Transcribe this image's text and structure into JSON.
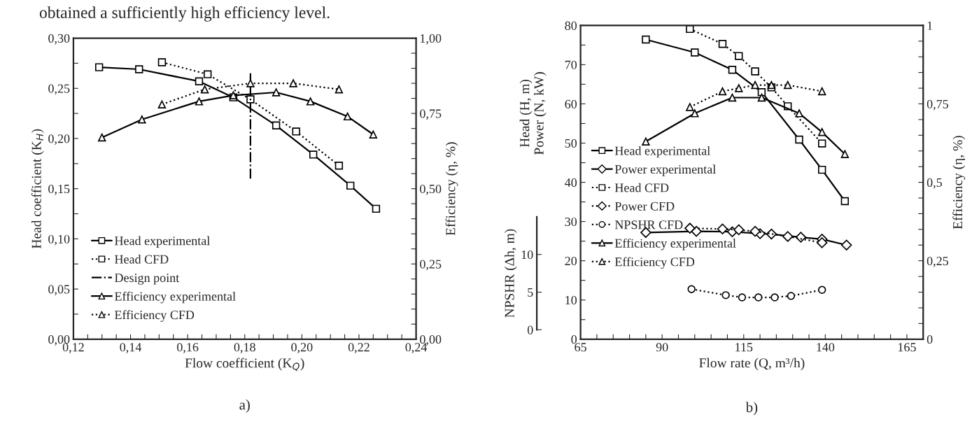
{
  "chart_data": [
    {
      "type": "line",
      "xlabel": "Flow coefficient (K$_{Q}$)",
      "ylabel": "Head coefficient (K$_{H}$)",
      "y2label": "Efficiency (η, %)",
      "annotations": [
        "obtained a sufficiently high efficiency level.",
        "a)"
      ],
      "xlim": [
        0.12,
        0.24
      ],
      "xticks": [
        {
          "value": 0.12,
          "label": "0,12"
        },
        {
          "value": 0.125,
          "label": null
        },
        {
          "value": 0.13,
          "label": null
        },
        {
          "value": 0.135,
          "label": null
        },
        {
          "value": 0.14,
          "label": "0,14"
        },
        {
          "value": 0.145,
          "label": null
        },
        {
          "value": 0.15,
          "label": null
        },
        {
          "value": 0.155,
          "label": null
        },
        {
          "value": 0.16,
          "label": "0,16"
        },
        {
          "value": 0.165,
          "label": null
        },
        {
          "value": 0.17,
          "label": null
        },
        {
          "value": 0.175,
          "label": null
        },
        {
          "value": 0.18,
          "label": "0,18"
        },
        {
          "value": 0.185,
          "label": null
        },
        {
          "value": 0.19,
          "label": null
        },
        {
          "value": 0.195,
          "label": null
        },
        {
          "value": 0.2,
          "label": "0,20"
        },
        {
          "value": 0.205,
          "label": null
        },
        {
          "value": 0.21,
          "label": null
        },
        {
          "value": 0.215,
          "label": null
        },
        {
          "value": 0.22,
          "label": "0,22"
        },
        {
          "value": 0.225,
          "label": null
        },
        {
          "value": 0.23,
          "label": null
        },
        {
          "value": 0.235,
          "label": null
        },
        {
          "value": 0.24,
          "label": "0,24"
        }
      ],
      "ylim": [
        0,
        0.3
      ],
      "yticks": [
        {
          "value": 0,
          "label": "0,00"
        },
        {
          "value": 0.025,
          "label": null
        },
        {
          "value": 0.05,
          "label": "0,05"
        },
        {
          "value": 0.075,
          "label": null
        },
        {
          "value": 0.1,
          "label": "0,10"
        },
        {
          "value": 0.125,
          "label": null
        },
        {
          "value": 0.15,
          "label": "0,15"
        },
        {
          "value": 0.175,
          "label": null
        },
        {
          "value": 0.2,
          "label": "0,20"
        },
        {
          "value": 0.225,
          "label": null
        },
        {
          "value": 0.25,
          "label": "0,25"
        },
        {
          "value": 0.275,
          "label": null
        },
        {
          "value": 0.3,
          "label": "0,30"
        }
      ],
      "y2lim": [
        0,
        1
      ],
      "y2ticks": [
        {
          "value": 0,
          "label": "0,00"
        },
        {
          "value": 0.05,
          "label": null
        },
        {
          "value": 0.1,
          "label": null
        },
        {
          "value": 0.15,
          "label": null
        },
        {
          "value": 0.2,
          "label": null
        },
        {
          "value": 0.25,
          "label": "0,25"
        },
        {
          "value": 0.3,
          "label": null
        },
        {
          "value": 0.35,
          "label": null
        },
        {
          "value": 0.4,
          "label": null
        },
        {
          "value": 0.45,
          "label": null
        },
        {
          "value": 0.5,
          "label": "0,50"
        },
        {
          "value": 0.55,
          "label": null
        },
        {
          "value": 0.6,
          "label": null
        },
        {
          "value": 0.65,
          "label": null
        },
        {
          "value": 0.7,
          "label": null
        },
        {
          "value": 0.75,
          "label": "0,75"
        },
        {
          "value": 0.8,
          "label": null
        },
        {
          "value": 0.85,
          "label": null
        },
        {
          "value": 0.9,
          "label": null
        },
        {
          "value": 0.95,
          "label": null
        },
        {
          "value": 1,
          "label": "1,00"
        }
      ],
      "grid": false,
      "legend": "bottom left",
      "series": [
        {
          "name": "Head experimental",
          "color": "#000000",
          "marker": "square",
          "line_style": "solid",
          "x": [
            0.129,
            0.143,
            0.164,
            0.176,
            0.191,
            0.204,
            0.217,
            0.226
          ],
          "values": [
            0.271,
            0.269,
            0.257,
            0.241,
            0.213,
            0.184,
            0.153,
            0.13
          ]
        },
        {
          "name": "Head CFD",
          "color": "#000000",
          "marker": "square",
          "line_style": "dotted",
          "x": [
            0.151,
            0.167,
            0.182,
            0.198,
            0.213
          ],
          "values": [
            0.276,
            0.264,
            0.239,
            0.207,
            0.173
          ]
        },
        {
          "name": "Design point",
          "color": "#000000",
          "marker": "none",
          "line_style": "dashdot",
          "x": [
            0.182,
            0.182
          ],
          "values": [
            0.16,
            0.265
          ]
        },
        {
          "name": "Efficiency experimental",
          "color": "#000000",
          "marker": "triangle",
          "line_style": "solid",
          "axis": "y2",
          "x": [
            0.13,
            0.144,
            0.164,
            0.176,
            0.191,
            0.203,
            0.216,
            0.225
          ],
          "values": [
            0.67,
            0.73,
            0.79,
            0.81,
            0.82,
            0.79,
            0.74,
            0.68
          ]
        },
        {
          "name": "Efficiency CFD",
          "color": "#000000",
          "marker": "triangle",
          "line_style": "dotted",
          "axis": "y2",
          "x": [
            0.151,
            0.166,
            0.182,
            0.197,
            0.213
          ],
          "values": [
            0.78,
            0.83,
            0.85,
            0.85,
            0.83
          ]
        }
      ]
    },
    {
      "type": "line",
      "xlabel": "Flow rate (Q, m³/h)",
      "ylabel": "Head (H, m)\nPower (N, kW)",
      "y2label": "Efficiency (η, %)",
      "y3label": "NPSHR (Δh, m)",
      "annotations": [
        "b)"
      ],
      "xlim": [
        65,
        170
      ],
      "xticks": [
        65,
        {
          "value": 70,
          "label": null
        },
        {
          "value": 75,
          "label": null
        },
        {
          "value": 80,
          "label": null
        },
        {
          "value": 85,
          "label": null
        },
        90,
        {
          "value": 95,
          "label": null
        },
        {
          "value": 100,
          "label": null
        },
        {
          "value": 105,
          "label": null
        },
        {
          "value": 110,
          "label": null
        },
        115,
        {
          "value": 120,
          "label": null
        },
        {
          "value": 125,
          "label": null
        },
        {
          "value": 130,
          "label": null
        },
        {
          "value": 135,
          "label": null
        },
        140,
        {
          "value": 145,
          "label": null
        },
        {
          "value": 150,
          "label": null
        },
        {
          "value": 155,
          "label": null
        },
        {
          "value": 160,
          "label": null
        },
        165
      ],
      "ylim": [
        0,
        80
      ],
      "yticks": [
        0,
        {
          "value": 5,
          "label": null
        },
        10,
        {
          "value": 15,
          "label": null
        },
        20,
        {
          "value": 25,
          "label": null
        },
        30,
        {
          "value": 35,
          "label": null
        },
        40,
        {
          "value": 45,
          "label": null
        },
        50,
        {
          "value": 55,
          "label": null
        },
        60,
        {
          "value": 65,
          "label": null
        },
        70,
        {
          "value": 75,
          "label": null
        },
        80
      ],
      "y2lim": [
        0,
        1
      ],
      "y2ticks": [
        0,
        {
          "value": 0.05,
          "label": null
        },
        {
          "value": 0.1,
          "label": null
        },
        {
          "value": 0.15,
          "label": null
        },
        {
          "value": 0.2,
          "label": null
        },
        {
          "value": 0.25,
          "label": "0,25"
        },
        {
          "value": 0.3,
          "label": null
        },
        {
          "value": 0.35,
          "label": null
        },
        {
          "value": 0.4,
          "label": null
        },
        {
          "value": 0.45,
          "label": null
        },
        {
          "value": 0.5,
          "label": "0,5"
        },
        {
          "value": 0.55,
          "label": null
        },
        {
          "value": 0.6,
          "label": null
        },
        {
          "value": 0.65,
          "label": null
        },
        {
          "value": 0.7,
          "label": null
        },
        {
          "value": 0.75,
          "label": "0,75"
        },
        {
          "value": 0.8,
          "label": null
        },
        {
          "value": 0.85,
          "label": null
        },
        {
          "value": 0.9,
          "label": null
        },
        {
          "value": 0.95,
          "label": null
        },
        1
      ],
      "y3lim": [
        0,
        15
      ],
      "y3ticks": [
        0,
        5,
        10
      ],
      "grid": false,
      "legend": "left",
      "series": [
        {
          "name": "Head experimental",
          "color": "#000000",
          "marker": "square",
          "line_style": "solid",
          "x": [
            85,
            100,
            111.5,
            120.5,
            132,
            139,
            146
          ],
          "values": [
            76.4,
            73.1,
            68.7,
            63.0,
            50.9,
            43.2,
            35.2
          ]
        },
        {
          "name": "Power experimental",
          "color": "#000000",
          "marker": "diamond",
          "line_style": "solid",
          "x": [
            85,
            100.5,
            111.5,
            120,
            123.5,
            132.5,
            139,
            146.5
          ],
          "values": [
            27.2,
            27.5,
            27.4,
            26.9,
            26.8,
            26.0,
            25.5,
            24.0
          ]
        },
        {
          "name": "Head CFD",
          "color": "#000000",
          "marker": "square",
          "line_style": "dotted",
          "x": [
            98.5,
            108.5,
            113.5,
            118.5,
            123.5,
            128.5,
            139
          ],
          "values": [
            79.1,
            75.3,
            72.2,
            68.3,
            64.2,
            59.4,
            49.9
          ]
        },
        {
          "name": "Power CFD",
          "color": "#000000",
          "marker": "diamond",
          "line_style": "dotted",
          "x": [
            98.5,
            108.5,
            113.5,
            118.5,
            128.5,
            139
          ],
          "values": [
            28.3,
            28.1,
            27.9,
            27.5,
            26.2,
            24.6
          ]
        },
        {
          "name": "NPSHR CFD",
          "color": "#000000",
          "marker": "circle",
          "line_style": "dotted",
          "axis": "y3",
          "x": [
            99,
            109.5,
            114.5,
            119.5,
            124.5,
            129.5,
            139
          ],
          "values": [
            5.4,
            4.6,
            4.3,
            4.3,
            4.3,
            4.5,
            5.3
          ]
        },
        {
          "name": "Efficiency experimental",
          "color": "#000000",
          "marker": "triangle",
          "line_style": "solid",
          "axis": "y2",
          "x": [
            85,
            100,
            111.5,
            120.5,
            132,
            139,
            146
          ],
          "values": [
            0.63,
            0.72,
            0.77,
            0.77,
            0.72,
            0.66,
            0.59
          ]
        },
        {
          "name": "Efficiency CFD",
          "color": "#000000",
          "marker": "triangle",
          "line_style": "dotted",
          "axis": "y2",
          "x": [
            98.5,
            108.5,
            113.5,
            118.5,
            123.5,
            128.5,
            139
          ],
          "values": [
            0.74,
            0.79,
            0.8,
            0.81,
            0.81,
            0.81,
            0.79
          ]
        }
      ]
    }
  ]
}
